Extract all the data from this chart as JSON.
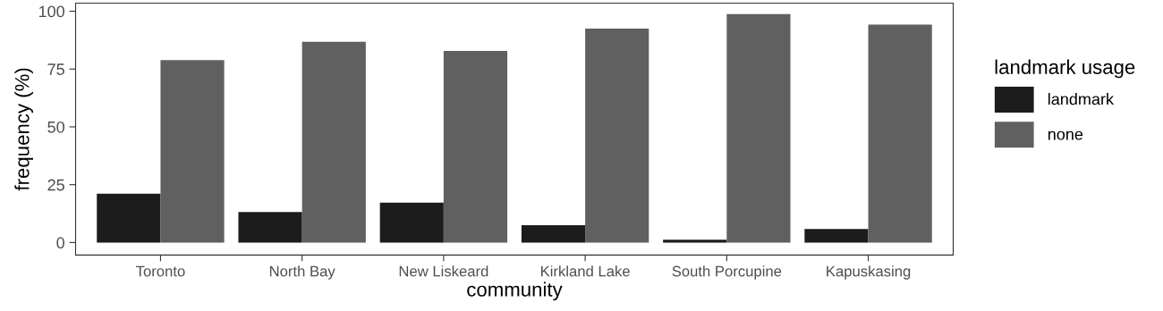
{
  "chart_data": {
    "type": "bar",
    "xlabel": "community",
    "ylabel": "frequency (%)",
    "legend_title": "landmark usage",
    "categories": [
      "Toronto",
      "North Bay",
      "New Liskeard",
      "Kirkland Lake",
      "South Porcupine",
      "Kapuskasing"
    ],
    "series": [
      {
        "name": "landmark",
        "color": "#1c1c1c",
        "values": [
          21.1,
          13.2,
          17.2,
          7.5,
          1.2,
          5.8
        ]
      },
      {
        "name": "none",
        "color": "#606060",
        "values": [
          78.9,
          86.8,
          82.8,
          92.5,
          98.8,
          94.2
        ]
      }
    ],
    "ylim": [
      -5.4,
      103.5
    ],
    "yticks": [
      0,
      25,
      50,
      75,
      100
    ],
    "grid": false,
    "legend": "right"
  }
}
